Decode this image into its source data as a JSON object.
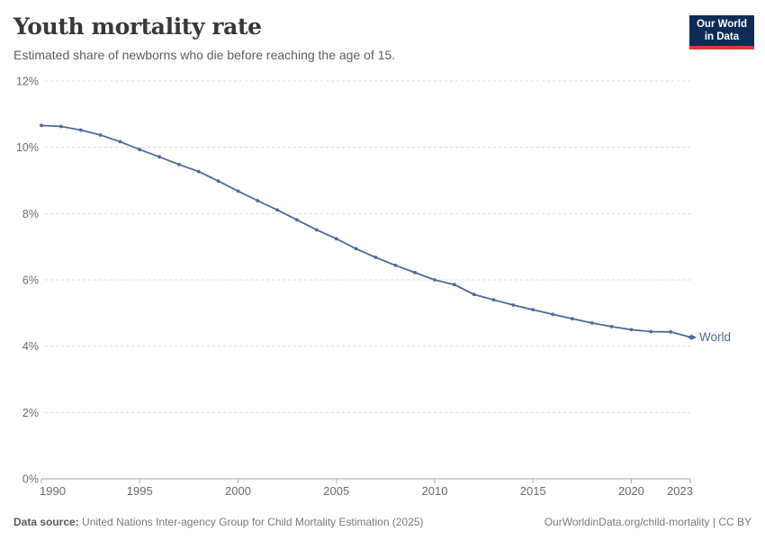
{
  "header": {
    "title": "Youth mortality rate",
    "subtitle": "Estimated share of newborns who die before reaching the age of 15."
  },
  "logo": {
    "line1": "Our World",
    "line2": "in Data",
    "bg_color": "#0e2b55",
    "accent_color": "#dc3a33"
  },
  "chart_data": {
    "type": "line",
    "title": "Youth mortality rate",
    "xlabel": "",
    "ylabel": "",
    "x": [
      1990,
      1991,
      1992,
      1993,
      1994,
      1995,
      1996,
      1997,
      1998,
      1999,
      2000,
      2001,
      2002,
      2003,
      2004,
      2005,
      2006,
      2007,
      2008,
      2009,
      2010,
      2011,
      2012,
      2013,
      2014,
      2015,
      2016,
      2017,
      2018,
      2019,
      2020,
      2021,
      2022,
      2023
    ],
    "series": [
      {
        "name": "World",
        "color": "#4c6a9c",
        "values": [
          10.66,
          10.63,
          10.52,
          10.37,
          10.17,
          9.93,
          9.71,
          9.48,
          9.27,
          8.98,
          8.68,
          8.39,
          8.11,
          7.81,
          7.51,
          7.24,
          6.94,
          6.68,
          6.44,
          6.22,
          6.0,
          5.86,
          5.56,
          5.4,
          5.24,
          5.1,
          4.96,
          4.83,
          4.7,
          4.59,
          4.5,
          4.44,
          4.43,
          4.27
        ]
      }
    ],
    "ylim": [
      0,
      12
    ],
    "yticks": [
      {
        "v": 0,
        "label": "0%"
      },
      {
        "v": 2,
        "label": "2%"
      },
      {
        "v": 4,
        "label": "4%"
      },
      {
        "v": 6,
        "label": "6%"
      },
      {
        "v": 8,
        "label": "8%"
      },
      {
        "v": 10,
        "label": "10%"
      },
      {
        "v": 12,
        "label": "12%"
      }
    ],
    "xticks": [
      {
        "v": 1990,
        "label": "1990"
      },
      {
        "v": 1995,
        "label": "1995"
      },
      {
        "v": 2000,
        "label": "2000"
      },
      {
        "v": 2005,
        "label": "2005"
      },
      {
        "v": 2010,
        "label": "2010"
      },
      {
        "v": 2015,
        "label": "2015"
      },
      {
        "v": 2020,
        "label": "2020"
      },
      {
        "v": 2023,
        "label": "2023"
      }
    ],
    "grid": "horizontal-dashed",
    "legend_position": "end-of-line"
  },
  "footer": {
    "source_label": "Data source:",
    "source_text": "United Nations Inter-agency Group for Child Mortality Estimation (2025)",
    "credit": "OurWorldinData.org/child-mortality | CC BY"
  }
}
